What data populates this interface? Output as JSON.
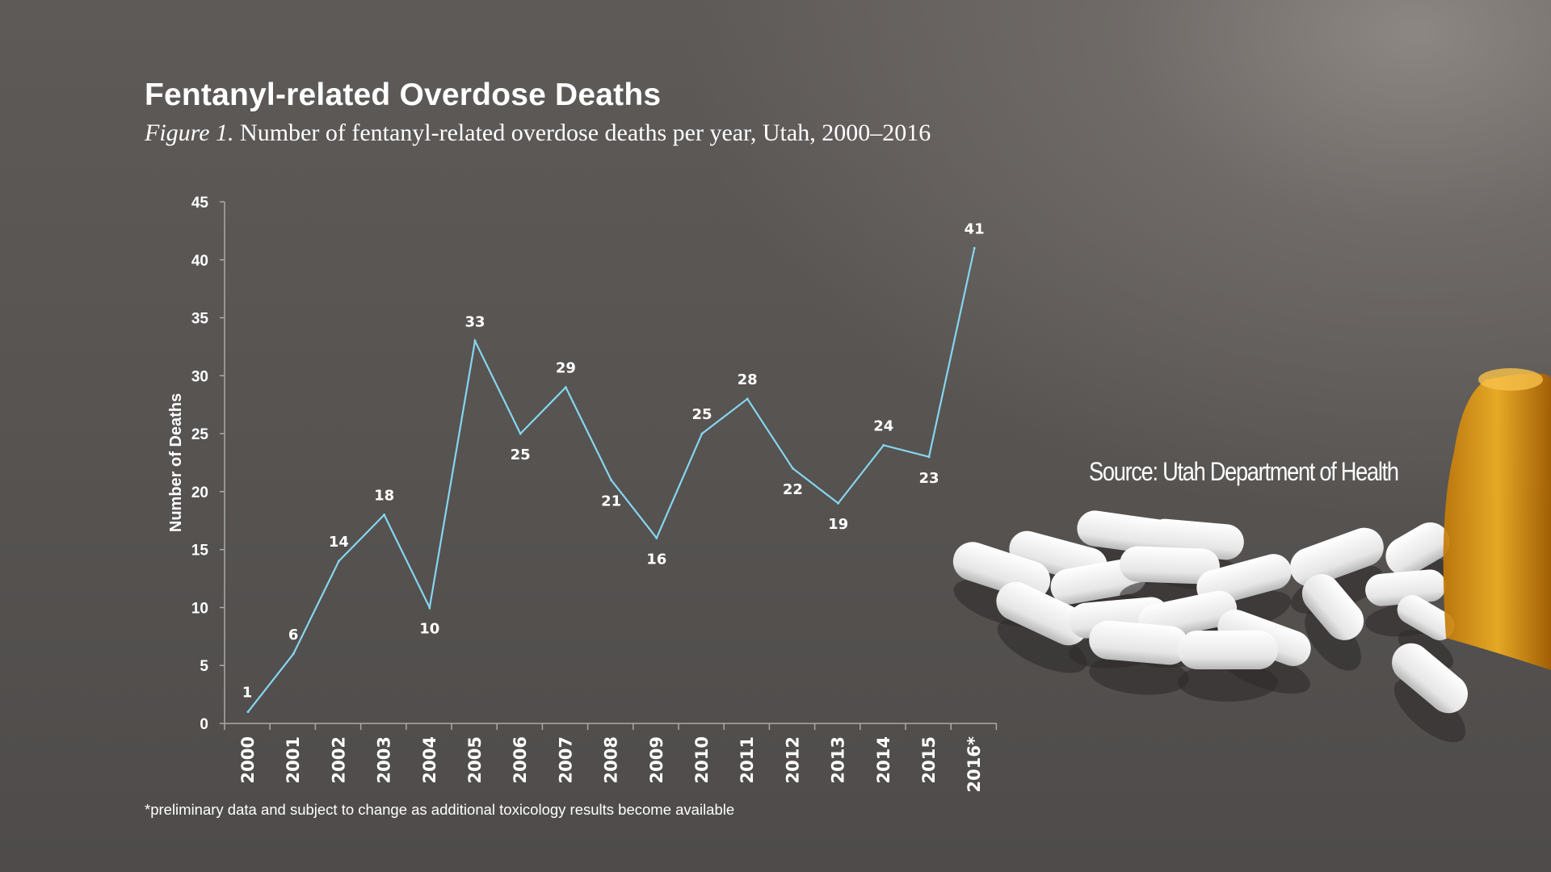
{
  "header": {
    "title": "Fentanyl-related Overdose Deaths",
    "figure_label": "Figure 1.",
    "figure_caption": " Number of fentanyl-related overdose deaths per year, Utah, 2000–2016"
  },
  "footnote": "*preliminary data and subject to change as additional toxicology results become available",
  "source": "Source: Utah Department of Health",
  "chart_data": {
    "type": "line",
    "title": "Fentanyl-related Overdose Deaths",
    "xlabel": "",
    "ylabel": "Number of Deaths",
    "categories": [
      "2000",
      "2001",
      "2002",
      "2003",
      "2004",
      "2005",
      "2006",
      "2007",
      "2008",
      "2009",
      "2010",
      "2011",
      "2012",
      "2013",
      "2014",
      "2015",
      "2016*"
    ],
    "values": [
      1,
      6,
      14,
      18,
      10,
      33,
      25,
      29,
      21,
      16,
      25,
      28,
      22,
      19,
      24,
      23,
      41
    ],
    "ylim": [
      0,
      45
    ],
    "yticks": [
      0,
      5,
      10,
      15,
      20,
      25,
      30,
      35,
      40,
      45
    ],
    "grid": false,
    "data_labels": true,
    "line_color": "#86d6f0"
  }
}
